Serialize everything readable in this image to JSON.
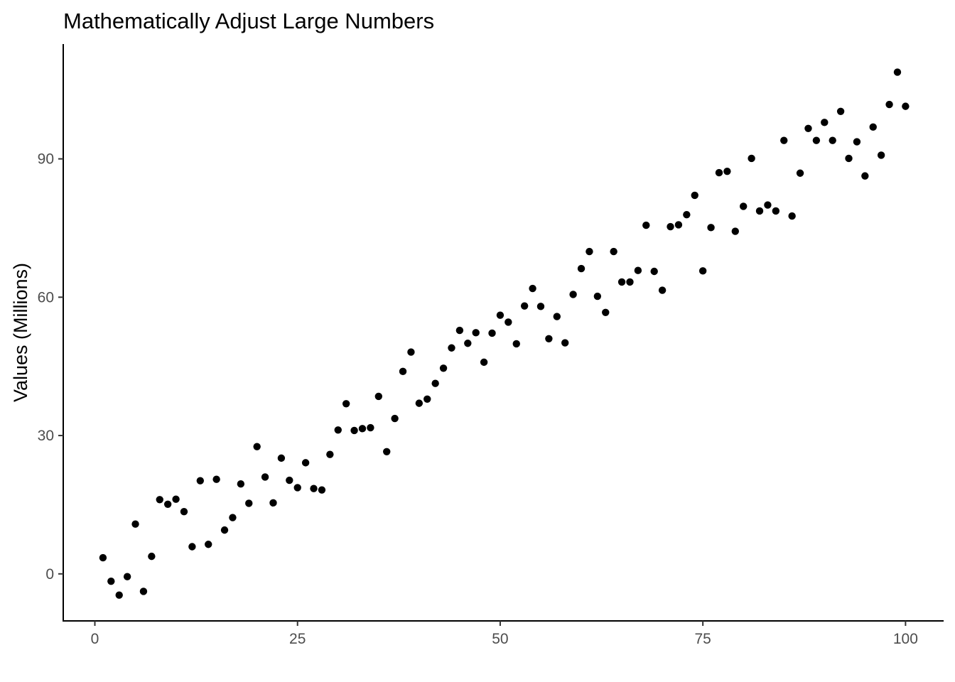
{
  "chart_data": {
    "type": "scatter",
    "title": "Mathematically Adjust Large Numbers",
    "xlabel": "",
    "ylabel": "Values (Millions)",
    "xlim": [
      -3.9,
      104.7
    ],
    "ylim": [
      -10.2,
      114.9
    ],
    "x_ticks": [
      0,
      25,
      50,
      75,
      100
    ],
    "x_tick_labels": [
      "0",
      "25",
      "50",
      "75",
      "100"
    ],
    "y_ticks": [
      0,
      30,
      60,
      90
    ],
    "y_tick_labels": [
      "0",
      "30",
      "60",
      "90"
    ],
    "grid": false,
    "point_color": "#000000",
    "x": [
      1,
      2,
      3,
      4,
      5,
      6,
      7,
      8,
      9,
      10,
      11,
      12,
      13,
      14,
      15,
      16,
      17,
      18,
      19,
      20,
      21,
      22,
      23,
      24,
      25,
      26,
      27,
      28,
      29,
      30,
      31,
      32,
      33,
      34,
      35,
      36,
      37,
      38,
      39,
      40,
      41,
      42,
      43,
      44,
      45,
      46,
      47,
      48,
      49,
      50,
      51,
      52,
      53,
      54,
      55,
      56,
      57,
      58,
      59,
      60,
      61,
      62,
      63,
      64,
      65,
      66,
      67,
      68,
      69,
      70,
      71,
      72,
      73,
      74,
      75,
      76,
      77,
      78,
      79,
      80,
      81,
      82,
      83,
      84,
      85,
      86,
      87,
      88,
      89,
      90,
      91,
      92,
      93,
      94,
      95,
      96,
      97,
      98,
      99,
      100
    ],
    "y": [
      3.5,
      -1.6,
      -4.6,
      -0.6,
      10.8,
      -3.8,
      3.8,
      16.1,
      15.1,
      16.2,
      13.5,
      5.9,
      20.2,
      6.4,
      20.5,
      9.5,
      12.2,
      19.5,
      15.3,
      27.6,
      21.0,
      15.4,
      25.1,
      20.3,
      18.7,
      24.1,
      18.5,
      18.2,
      25.9,
      31.2,
      36.9,
      31.1,
      31.5,
      31.7,
      38.5,
      26.5,
      33.7,
      43.9,
      48.1,
      37.0,
      37.9,
      41.3,
      44.6,
      49.0,
      52.8,
      50.0,
      52.3,
      45.9,
      52.2,
      56.1,
      54.6,
      49.9,
      58.1,
      61.9,
      58.0,
      51.0,
      55.8,
      50.1,
      60.6,
      66.2,
      69.9,
      60.2,
      56.7,
      69.9,
      63.3,
      63.3,
      65.8,
      75.6,
      65.6,
      61.5,
      75.3,
      75.7,
      77.9,
      82.1,
      65.7,
      75.1,
      87.0,
      87.3,
      74.3,
      79.7,
      90.1,
      78.7,
      80.0,
      78.7,
      94.0,
      77.6,
      86.9,
      96.6,
      94.0,
      97.9,
      94.0,
      100.3,
      90.1,
      93.7,
      86.3,
      96.9,
      90.8,
      101.8,
      108.8,
      101.4
    ]
  }
}
